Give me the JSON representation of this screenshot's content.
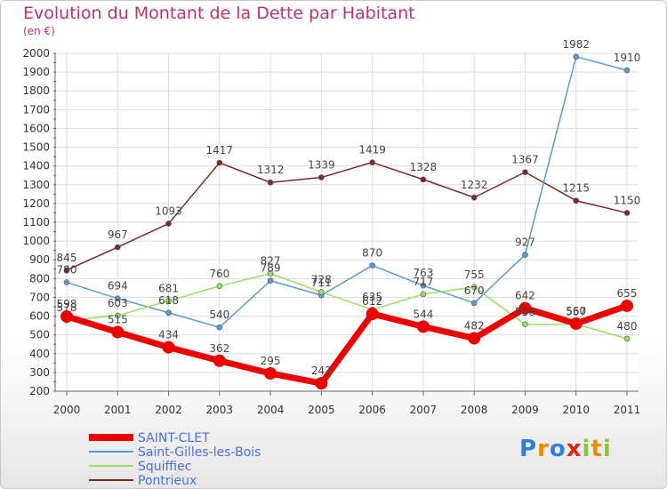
{
  "title": "Evolution du Montant de la Dette par Habitant",
  "unit": "(en €)",
  "logo": {
    "letters": [
      "P",
      "r",
      "o",
      "x",
      "i",
      "t",
      "i"
    ],
    "colors": [
      "#2f7fd6",
      "#f08a00",
      "#2f7fd6",
      "#e2231a",
      "#8bc53f",
      "#f08a00",
      "#8bc53f"
    ]
  },
  "chart_data": {
    "type": "line",
    "x": [
      "2000",
      "2001",
      "2002",
      "2003",
      "2004",
      "2005",
      "2006",
      "2007",
      "2008",
      "2009",
      "2010",
      "2011"
    ],
    "ylim": [
      200,
      2000
    ],
    "yticks": [
      "200",
      "300",
      "400",
      "500",
      "600",
      "700",
      "800",
      "900",
      "1000",
      "1100",
      "1200",
      "1300",
      "1400",
      "1500",
      "1600",
      "1700",
      "1800",
      "1900",
      "2000"
    ],
    "grid": true,
    "legend_position": "bottom-left",
    "series": [
      {
        "name": "SAINT-CLET",
        "color": "#ee0000",
        "width": 7,
        "marker": 7,
        "values": [
          598,
          515,
          434,
          362,
          295,
          242,
          612,
          544,
          482,
          642,
          560,
          655
        ],
        "labels": [
          "598",
          "515",
          "434",
          "362",
          "295",
          "242",
          "612",
          "544",
          "482",
          "642",
          "560",
          "655"
        ]
      },
      {
        "name": "Saint-Gilles-les-Bois",
        "color": "#5b9bd5",
        "width": 1.5,
        "marker": 3,
        "values": [
          780,
          694,
          618,
          540,
          789,
          711,
          870,
          763,
          670,
          927,
          1982,
          1910
        ],
        "labels": [
          "780",
          "694",
          "618",
          "540",
          "789",
          "711",
          "870",
          "763",
          "670",
          "927",
          "1982",
          "1910"
        ]
      },
      {
        "name": "Squiffiec",
        "color": "#99dd66",
        "width": 1.5,
        "marker": 3,
        "values": [
          578,
          603,
          681,
          760,
          827,
          728,
          635,
          717,
          755,
          556,
          557,
          480
        ],
        "labels": [
          "578",
          "603",
          "681",
          "760",
          "827",
          "728",
          "635",
          "717",
          "755",
          "556",
          "557",
          "480"
        ]
      },
      {
        "name": "Pontrieux",
        "color": "#7a2a2a",
        "width": 1.5,
        "marker": 3,
        "values": [
          845,
          967,
          1093,
          1417,
          1312,
          1339,
          1419,
          1328,
          1232,
          1367,
          1215,
          1150
        ],
        "labels": [
          "845",
          "967",
          "1093",
          "1417",
          "1312",
          "1339",
          "1419",
          "1328",
          "1232",
          "1367",
          "1215",
          "1150"
        ]
      }
    ]
  }
}
